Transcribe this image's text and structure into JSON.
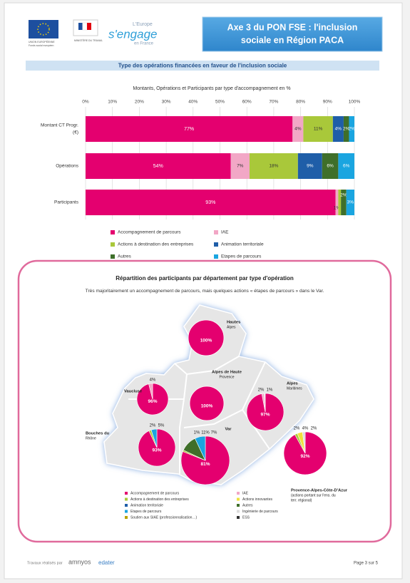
{
  "header": {
    "logos": [
      "UNION EUROPÉENNE",
      "Fonds social européen",
      "MINISTÈRE DU TRAVAIL",
      "L'Europe",
      "s'engage",
      "en France"
    ],
    "title": [
      "Axe 3 du PON FSE : l'inclusion",
      "sociale en Région PACA"
    ]
  },
  "section_title": "Type des opérations financées en faveur de l'inclusion sociale",
  "chart_data": {
    "type": "stacked-barh",
    "title": "Montants, Opérations et Participants par type d'accompagnement en %",
    "categories": [
      [
        "Montant CT Progr.",
        "(€)"
      ],
      [
        "Opérations"
      ],
      [
        "Participants"
      ]
    ],
    "series": [
      {
        "name": "Accompagnement de parcours",
        "color": "#e4006f",
        "values": [
          77,
          54,
          93
        ],
        "value_labels": [
          "77%",
          "54%",
          "93%"
        ]
      },
      {
        "name": "IAE",
        "color": "#f2a7c6",
        "values": [
          4,
          7,
          1
        ],
        "value_labels": [
          "4%",
          "7%",
          "1%"
        ]
      },
      {
        "name": "Actions à destination des entreprises",
        "color": "#a9c83a",
        "values": [
          11,
          18,
          1
        ],
        "value_labels": [
          "11%",
          "18%",
          null
        ]
      },
      {
        "name": "Animation territoriale",
        "color": "#1f5ea8",
        "values": [
          4,
          9,
          0
        ],
        "value_labels": [
          "4%",
          "9%",
          null
        ]
      },
      {
        "name": "Autres",
        "color": "#3f6f2a",
        "values": [
          2,
          6,
          2
        ],
        "value_labels": [
          "2%",
          "6%",
          "2%"
        ]
      },
      {
        "name": "Etapes de parcours",
        "color": "#1aa5e0",
        "values": [
          2,
          6,
          3
        ],
        "value_labels": [
          "2%",
          "6%",
          "3%"
        ]
      }
    ],
    "xlim": [
      0,
      100
    ],
    "xticks": [
      {
        "value": 0,
        "label": "0%"
      },
      {
        "value": 10,
        "label": "10%"
      },
      {
        "value": 20,
        "label": "20%"
      },
      {
        "value": 30,
        "label": "30%"
      },
      {
        "value": 40,
        "label": "40%"
      },
      {
        "value": 50,
        "label": "50%"
      },
      {
        "value": 60,
        "label": "60%"
      },
      {
        "value": 70,
        "label": "70%"
      },
      {
        "value": 80,
        "label": "80%"
      },
      {
        "value": 90,
        "label": "90%"
      },
      {
        "value": 100,
        "label": "100%"
      }
    ],
    "grid": true,
    "legend": "bottom"
  },
  "map": {
    "title": "Répartition des participants par département par type d'opération",
    "subtitle": "Très majoritairement un accompagnement de parcours, mais quelques actions « étapes de parcours » dans le Var.",
    "legend": [
      {
        "name": "Accompagnement de parcours",
        "color": "#e4006f"
      },
      {
        "name": "IAE",
        "color": "#f2a7c6"
      },
      {
        "name": "Actions à destination des entreprises",
        "color": "#a9c83a"
      },
      {
        "name": "Actions innovantes",
        "color": "#f0e23c"
      },
      {
        "name": "Animation territoriale",
        "color": "#1f5ea8"
      },
      {
        "name": "Autres",
        "color": "#3f6f2a"
      },
      {
        "name": "Etapes de parcours",
        "color": "#1aa5e0"
      },
      {
        "name": "Ingénierie de parcours",
        "color": "#dcdcdc"
      },
      {
        "name": "Soutien aux SIAE (professionnalisation…)",
        "color": "#b9a300"
      },
      {
        "name": "ESS",
        "color": "#333333"
      }
    ],
    "pies": [
      {
        "name": [
          "Hautes",
          "Alpes"
        ],
        "slices": [
          {
            "value": 100,
            "label": "100%",
            "color": "#e4006f"
          }
        ]
      },
      {
        "name": [
          "Alpes de Haute",
          "Provence"
        ],
        "slices": [
          {
            "value": 100,
            "label": "100%",
            "color": "#e4006f"
          }
        ]
      },
      {
        "name": [
          "Vaucluse"
        ],
        "slices": [
          {
            "value": 96,
            "label": "96%",
            "color": "#e4006f"
          },
          {
            "value": 4,
            "label": "4%",
            "color": "#f2a7c6"
          }
        ]
      },
      {
        "name": [
          "Alpes",
          "Maritimes"
        ],
        "slices": [
          {
            "value": 97,
            "label": "97%",
            "color": "#e4006f"
          },
          {
            "value": 2,
            "label": "2%",
            "color": "#f2a7c6"
          },
          {
            "value": 1,
            "label": "1%",
            "color": "#dcdcdc"
          }
        ]
      },
      {
        "name": [
          "Bouches du",
          "Rhône"
        ],
        "slices": [
          {
            "value": 93,
            "label": "93%",
            "color": "#e4006f"
          },
          {
            "value": 2,
            "label": "2%",
            "color": "#a9c83a"
          },
          {
            "value": 5,
            "label": "5%",
            "color": "#1aa5e0"
          }
        ]
      },
      {
        "name": [
          "Var"
        ],
        "slices": [
          {
            "value": 81,
            "label": "81%",
            "color": "#e4006f"
          },
          {
            "value": 1,
            "label": "1%",
            "color": "#a9c83a"
          },
          {
            "value": 11,
            "label": "11%",
            "color": "#3f6f2a"
          },
          {
            "value": 7,
            "label": "7%",
            "color": "#1aa5e0"
          }
        ]
      },
      {
        "name": [
          "Provence-Alpes-Côte-D'Azur",
          "(actions portant sur l'ens. du",
          "terr. régional)"
        ],
        "slices": [
          {
            "value": 92,
            "label": "92%",
            "color": "#e4006f"
          },
          {
            "value": 2,
            "label": "2%",
            "color": "#a9c83a"
          },
          {
            "value": 4,
            "label": "4%",
            "color": "#f0e23c"
          },
          {
            "value": 2,
            "label": "2%",
            "color": "#dcdcdc"
          }
        ]
      }
    ]
  },
  "footer": {
    "credit": [
      "Travaux réalisés par",
      "amnyos",
      "edater"
    ],
    "page": "Page 3 sur 5"
  }
}
